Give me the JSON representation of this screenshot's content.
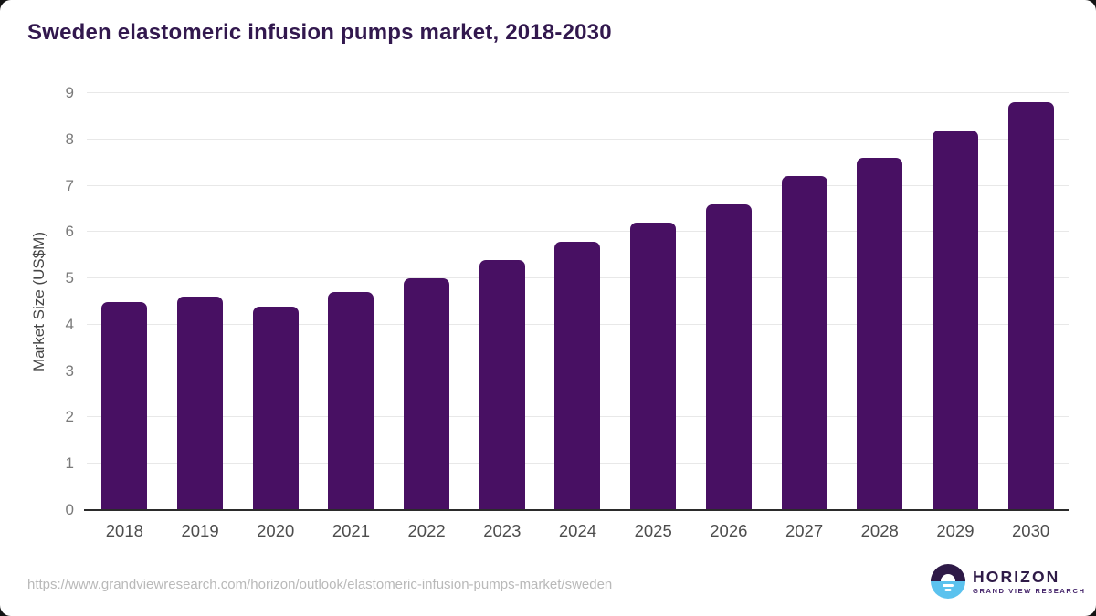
{
  "page": {
    "source_url": "https://www.grandviewresearch.com/horizon/outlook/elastomeric-infusion-pumps-market/sweden"
  },
  "chart_data": {
    "type": "bar",
    "title": "Sweden elastomeric infusion pumps market, 2018-2030",
    "categories": [
      "2018",
      "2019",
      "2020",
      "2021",
      "2022",
      "2023",
      "2024",
      "2025",
      "2026",
      "2027",
      "2028",
      "2029",
      "2030"
    ],
    "values": [
      4.5,
      4.6,
      4.4,
      4.7,
      5.0,
      5.4,
      5.8,
      6.2,
      6.6,
      7.2,
      7.6,
      8.2,
      8.8
    ],
    "xlabel": "",
    "ylabel": "Market Size (US$M)",
    "ylim": [
      0,
      9
    ],
    "yticks": [
      0,
      1,
      2,
      3,
      4,
      5,
      6,
      7,
      8,
      9
    ],
    "grid": true,
    "legend": "none",
    "bar_color": "#481063"
  },
  "branding": {
    "logo_name": "HORIZON",
    "logo_subtext": "GRAND VIEW RESEARCH"
  },
  "colors": {
    "title": "#32184e",
    "bar": "#481063",
    "gridline": "#e8e8e8",
    "axis_line": "#2b2b2b",
    "y_tick_label": "#7a7a7a",
    "x_tick_label": "#4d4d4d",
    "url_text": "#b9b9b9",
    "logo_dark": "#2e1a47",
    "logo_blue": "#5bc2ee"
  }
}
